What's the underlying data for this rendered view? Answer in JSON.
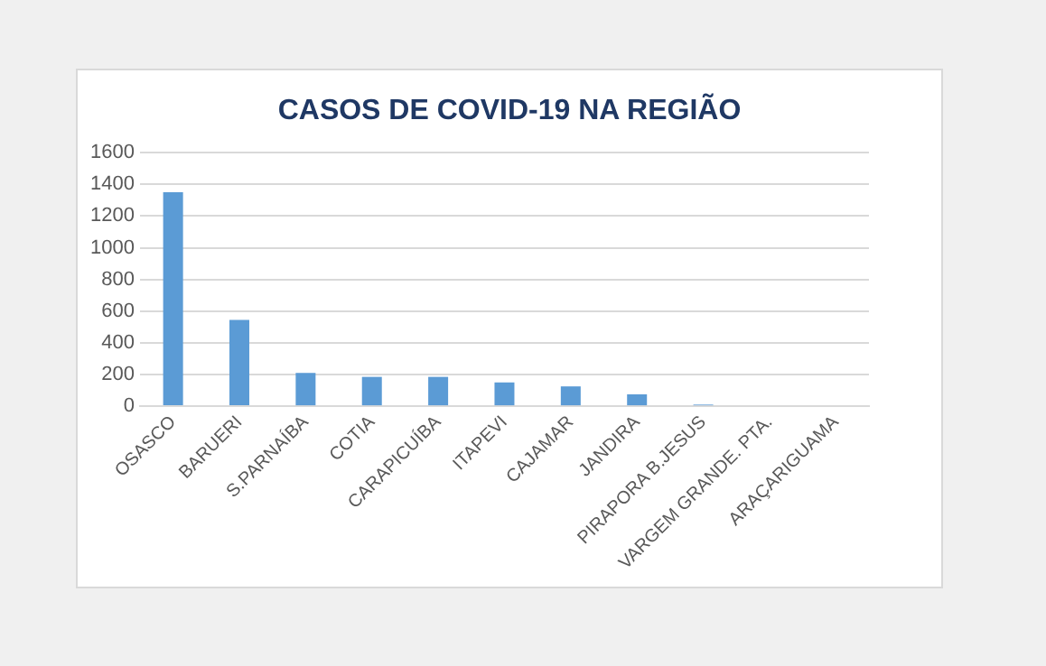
{
  "chart_data": {
    "type": "bar",
    "title": "CASOS DE COVID-19 NA REGIÃO",
    "categories": [
      "OSASCO",
      "BARUERI",
      "S.PARNAÍBA",
      "COTIA",
      "CARAPICUÍBA",
      "ITAPEVI",
      "CAJAMAR",
      "JANDIRA",
      "PIRAPORA B.JESUS",
      "VARGEM GRANDE. PTA.",
      "ARAÇARIGUAMA"
    ],
    "values": [
      1350,
      545,
      210,
      185,
      185,
      150,
      125,
      75,
      10,
      0,
      0
    ],
    "color": "#5b9bd5",
    "ylim": [
      0,
      1600
    ],
    "yticks": [
      0,
      200,
      400,
      600,
      800,
      1000,
      1200,
      1400,
      1600
    ],
    "grid": "y",
    "legend": false
  }
}
